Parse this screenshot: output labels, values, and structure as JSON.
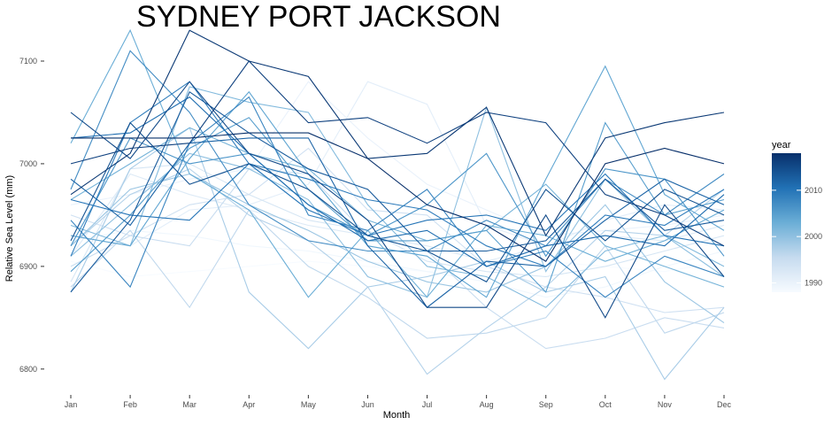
{
  "chart_data": {
    "type": "line",
    "title": "SYDNEY PORT JACKSON",
    "xlabel": "Month",
    "ylabel": "Relative Sea Level (mm)",
    "categories": [
      "Jan",
      "Feb",
      "Mar",
      "Apr",
      "May",
      "Jun",
      "Jul",
      "Aug",
      "Sep",
      "Oct",
      "Nov",
      "Dec"
    ],
    "ylim": [
      6780,
      7125
    ],
    "yticks": [
      6800,
      6900,
      7000,
      7100
    ],
    "grid": false,
    "legend": {
      "title": "year",
      "position": "right",
      "labels": [
        "1990",
        "2000",
        "2010"
      ],
      "range": [
        1988,
        2018
      ],
      "colors": [
        "#f7fbff",
        "#c6dbef",
        "#6baed6",
        "#2171b5",
        "#08306b"
      ]
    },
    "series": [
      {
        "year": 1988,
        "values": [
          6905,
          6890,
          6895,
          6900,
          6905,
          6900,
          6895,
          6900,
          6905,
          6900,
          6895,
          6905
        ]
      },
      {
        "year": 1989,
        "values": [
          6925,
          6935,
          6930,
          6920,
          6915,
          6905,
          6895,
          6885,
          6870,
          6880,
          6900,
          6915
        ]
      },
      {
        "year": 1990,
        "values": [
          6960,
          6970,
          6985,
          6995,
          7080,
          7025,
          6980,
          6955,
          6930,
          6935,
          6940,
          6950
        ]
      },
      {
        "year": 1991,
        "values": [
          6930,
          6920,
          6955,
          6960,
          6980,
          7080,
          7058,
          6940,
          6920,
          6945,
          6960,
          6955
        ]
      },
      {
        "year": 1992,
        "values": [
          6910,
          6990,
          6970,
          6955,
          6940,
          6930,
          6920,
          6905,
          6920,
          6930,
          6925,
          6940
        ]
      },
      {
        "year": 1993,
        "values": [
          6885,
          6995,
          7000,
          6970,
          6945,
          6935,
          6905,
          6895,
          6890,
          6900,
          6915,
          6930
        ]
      },
      {
        "year": 1994,
        "values": [
          6950,
          6930,
          6960,
          6970,
          7015,
          6955,
          6950,
          6900,
          6880,
          6870,
          6855,
          6860
        ]
      },
      {
        "year": 1995,
        "values": [
          6900,
          6930,
          6920,
          6995,
          6990,
          6930,
          6915,
          6860,
          6820,
          6830,
          6850,
          6840
        ]
      },
      {
        "year": 1996,
        "values": [
          6880,
          6935,
          6860,
          6955,
          6900,
          6870,
          6830,
          6835,
          6850,
          6920,
          6835,
          6855
        ]
      },
      {
        "year": 1997,
        "values": [
          6920,
          6970,
          6995,
          6950,
          6925,
          6880,
          6795,
          6840,
          6880,
          6935,
          6930,
          6975
        ]
      },
      {
        "year": 1998,
        "values": [
          6875,
          6995,
          7035,
          6875,
          6820,
          6880,
          6890,
          6905,
          6875,
          6890,
          6790,
          6860
        ]
      },
      {
        "year": 1999,
        "values": [
          6920,
          6975,
          6990,
          6960,
          6935,
          6905,
          6885,
          6875,
          6900,
          6960,
          6885,
          6845
        ]
      },
      {
        "year": 2000,
        "values": [
          6910,
          6960,
          7010,
          6995,
          6965,
          6890,
          6870,
          7055,
          6895,
          6985,
          6930,
          6890
        ]
      },
      {
        "year": 2001,
        "values": [
          6940,
          6920,
          7075,
          7060,
          7050,
          6960,
          6900,
          6890,
          6860,
          6915,
          6930,
          6900
        ]
      },
      {
        "year": 2002,
        "values": [
          6965,
          7000,
          7035,
          7010,
          6995,
          6945,
          6925,
          6935,
          6980,
          6920,
          6900,
          6880
        ]
      },
      {
        "year": 2003,
        "values": [
          7020,
          7130,
          6990,
          6955,
          6870,
          6935,
          6870,
          6940,
          6930,
          6905,
          6925,
          6955
        ]
      },
      {
        "year": 2004,
        "values": [
          6930,
          6920,
          7005,
          7070,
          6990,
          6920,
          6910,
          6870,
          6985,
          7095,
          6970,
          6935
        ]
      },
      {
        "year": 2005,
        "values": [
          6895,
          6950,
          7015,
          7045,
          6975,
          6925,
          6925,
          6935,
          6875,
          7040,
          6950,
          6965
        ]
      },
      {
        "year": 2006,
        "values": [
          6920,
          7025,
          7000,
          7010,
          6960,
          6930,
          6960,
          7010,
          6910,
          6995,
          6985,
          6910
        ]
      },
      {
        "year": 2007,
        "values": [
          6975,
          7110,
          7050,
          6960,
          6925,
          6915,
          6915,
          6945,
          6920,
          6985,
          6950,
          6990
        ]
      },
      {
        "year": 2008,
        "values": [
          6945,
          6880,
          7020,
          7065,
          6950,
          6935,
          6975,
          6900,
          6915,
          6870,
          6910,
          6890
        ]
      },
      {
        "year": 2009,
        "values": [
          6910,
          7040,
          7080,
          7000,
          6985,
          6965,
          6955,
          6920,
          6900,
          6950,
          6940,
          6975
        ]
      },
      {
        "year": 2010,
        "values": [
          6965,
          6950,
          6945,
          7000,
          6955,
          6930,
          6945,
          6950,
          6935,
          6990,
          6930,
          6920
        ]
      },
      {
        "year": 2011,
        "values": [
          7025,
          7030,
          7065,
          7010,
          6960,
          6925,
          6935,
          6900,
          6920,
          6930,
          6920,
          6970
        ]
      },
      {
        "year": 2012,
        "values": [
          6985,
          6940,
          7020,
          7025,
          7025,
          6920,
          6860,
          6905,
          6900,
          6945,
          6985,
          6960
        ]
      },
      {
        "year": 2013,
        "values": [
          6875,
          6945,
          7070,
          7030,
          6995,
          6975,
          6915,
          6915,
          6925,
          6985,
          6935,
          6945
        ]
      },
      {
        "year": 2014,
        "values": [
          6925,
          7040,
          6980,
          7000,
          6975,
          6930,
          6915,
          6885,
          6975,
          6925,
          6975,
          6950
        ]
      },
      {
        "year": 2015,
        "values": [
          7050,
          7005,
          7080,
          7010,
          6990,
          6945,
          6860,
          6860,
          6950,
          6850,
          6960,
          6890
        ]
      },
      {
        "year": 2016,
        "values": [
          7000,
          7015,
          7020,
          7100,
          7040,
          7045,
          7020,
          7050,
          7040,
          6970,
          6950,
          6920
        ]
      },
      {
        "year": 2017,
        "values": [
          6970,
          7010,
          7130,
          7100,
          7085,
          7005,
          7010,
          7055,
          6930,
          7025,
          7040,
          7050
        ]
      },
      {
        "year": 2018,
        "values": [
          7025,
          7025,
          7025,
          7030,
          7030,
          7005,
          6960,
          6940,
          6905,
          7000,
          7015,
          7000
        ]
      }
    ]
  }
}
